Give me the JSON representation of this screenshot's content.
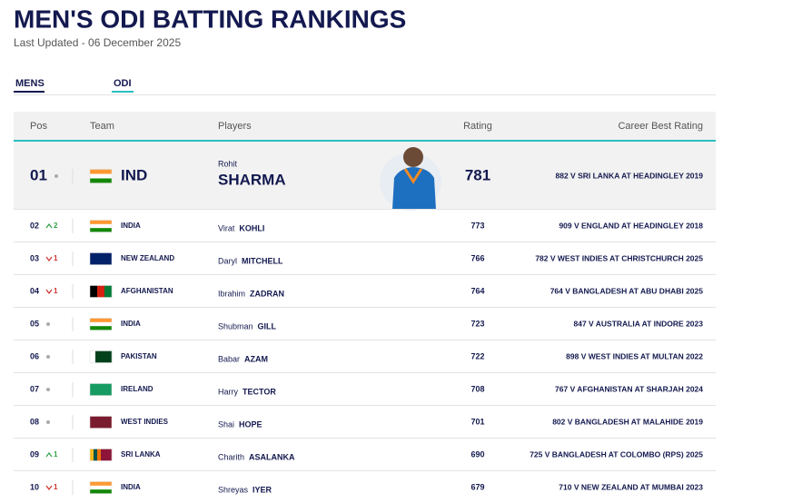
{
  "header": {
    "title": "MEN'S ODI BATTING RANKINGS",
    "updated": "Last Updated - 06 December 2025"
  },
  "tabs": [
    "MENS",
    "ODI"
  ],
  "table": {
    "columns": [
      "Pos",
      "Team",
      "Players",
      "Rating",
      "Career Best Rating"
    ],
    "rows": [
      {
        "pos": "01",
        "trend": "same",
        "team": "IND",
        "flag": {
          "dir": "h",
          "colors": [
            "#ff9933",
            "#ffffff",
            "#138808"
          ]
        },
        "first": "Rohit",
        "last": "SHARMA",
        "rating": 781,
        "best": "882 V SRI LANKA AT HEADINGLEY 2019"
      },
      {
        "pos": "02",
        "trend": "up",
        "change": "2",
        "team": "INDIA",
        "flag": {
          "dir": "h",
          "colors": [
            "#ff9933",
            "#ffffff",
            "#138808"
          ]
        },
        "first": "Virat",
        "last": "KOHLI",
        "rating": 773,
        "best": "909 V ENGLAND AT HEADINGLEY 2018"
      },
      {
        "pos": "03",
        "trend": "down",
        "change": "1",
        "team": "NEW ZEALAND",
        "flag": {
          "dir": "h",
          "colors": [
            "#012169"
          ]
        },
        "first": "Daryl",
        "last": "MITCHELL",
        "rating": 766,
        "best": "782 V WEST INDIES AT CHRISTCHURCH 2025"
      },
      {
        "pos": "04",
        "trend": "down",
        "change": "1",
        "team": "AFGHANISTAN",
        "flag": {
          "dir": "v",
          "colors": [
            "#000000",
            "#d32011",
            "#007a36"
          ]
        },
        "first": "Ibrahim",
        "last": "ZADRAN",
        "rating": 764,
        "best": "764 V BANGLADESH AT ABU DHABI 2025"
      },
      {
        "pos": "05",
        "trend": "same",
        "team": "INDIA",
        "flag": {
          "dir": "h",
          "colors": [
            "#ff9933",
            "#ffffff",
            "#138808"
          ]
        },
        "first": "Shubman",
        "last": "GILL",
        "rating": 723,
        "best": "847 V AUSTRALIA AT INDORE 2023"
      },
      {
        "pos": "06",
        "trend": "same",
        "team": "PAKISTAN",
        "flag": {
          "dir": "v",
          "colors": [
            "#ffffff",
            "#01411c",
            "#01411c",
            "#01411c"
          ]
        },
        "first": "Babar",
        "last": "AZAM",
        "rating": 722,
        "best": "898 V WEST INDIES AT MULTAN 2022"
      },
      {
        "pos": "07",
        "trend": "same",
        "team": "IRELAND",
        "flag": {
          "dir": "h",
          "colors": [
            "#169b62"
          ]
        },
        "first": "Harry",
        "last": "TECTOR",
        "rating": 708,
        "best": "767 V AFGHANISTAN AT SHARJAH 2024"
      },
      {
        "pos": "08",
        "trend": "same",
        "team": "WEST INDIES",
        "flag": {
          "dir": "h",
          "colors": [
            "#7b1c2e"
          ]
        },
        "first": "Shai",
        "last": "HOPE",
        "rating": 701,
        "best": "802 V BANGLADESH AT MALAHIDE 2019"
      },
      {
        "pos": "09",
        "trend": "up",
        "change": "1",
        "team": "SRI LANKA",
        "flag": {
          "dir": "v",
          "colors": [
            "#f7b718",
            "#00534e",
            "#eb7400",
            "#8d153a",
            "#8d153a",
            "#8d153a"
          ]
        },
        "first": "Charith",
        "last": "ASALANKA",
        "rating": 690,
        "best": "725 V BANGLADESH AT COLOMBO (RPS) 2025"
      },
      {
        "pos": "10",
        "trend": "down",
        "change": "1",
        "team": "INDIA",
        "flag": {
          "dir": "h",
          "colors": [
            "#ff9933",
            "#ffffff",
            "#138808"
          ]
        },
        "first": "Shreyas",
        "last": "IYER",
        "rating": 679,
        "best": "710 V NEW ZEALAND AT MUMBAI 2023"
      }
    ]
  }
}
